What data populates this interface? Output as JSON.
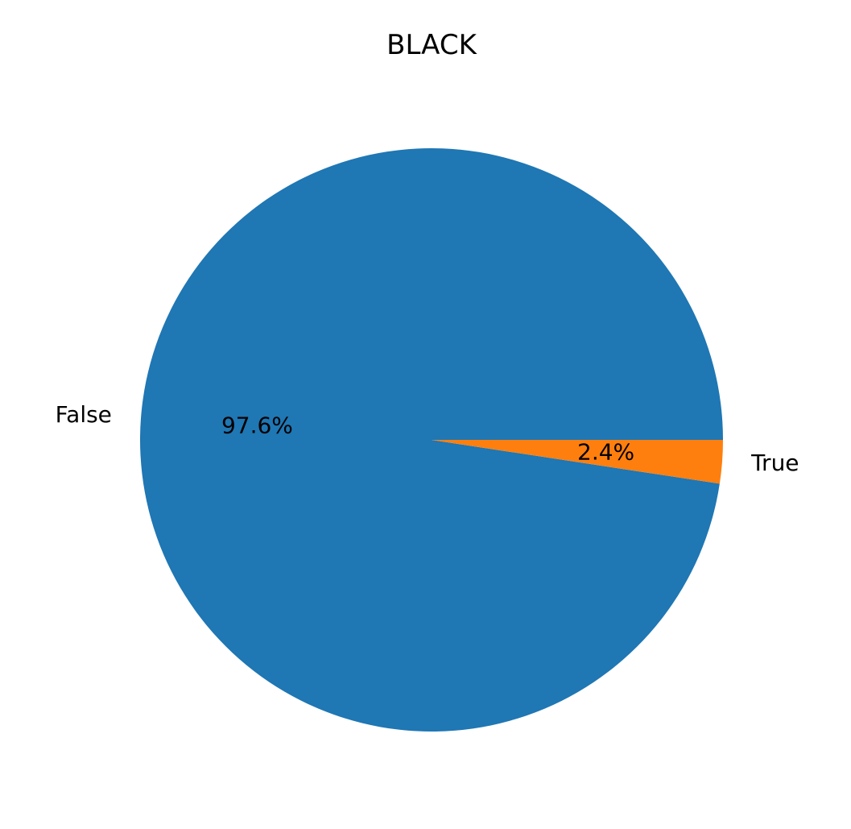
{
  "chart_data": {
    "type": "pie",
    "title": "BLACK",
    "start_angle": 0,
    "direction": "counterclockwise",
    "slices": [
      {
        "label": "False",
        "value": 97.6,
        "pct_label": "97.6%",
        "color": "#1f77b4"
      },
      {
        "label": "True",
        "value": 2.4,
        "pct_label": "2.4%",
        "color": "#ff7f0e"
      }
    ]
  }
}
